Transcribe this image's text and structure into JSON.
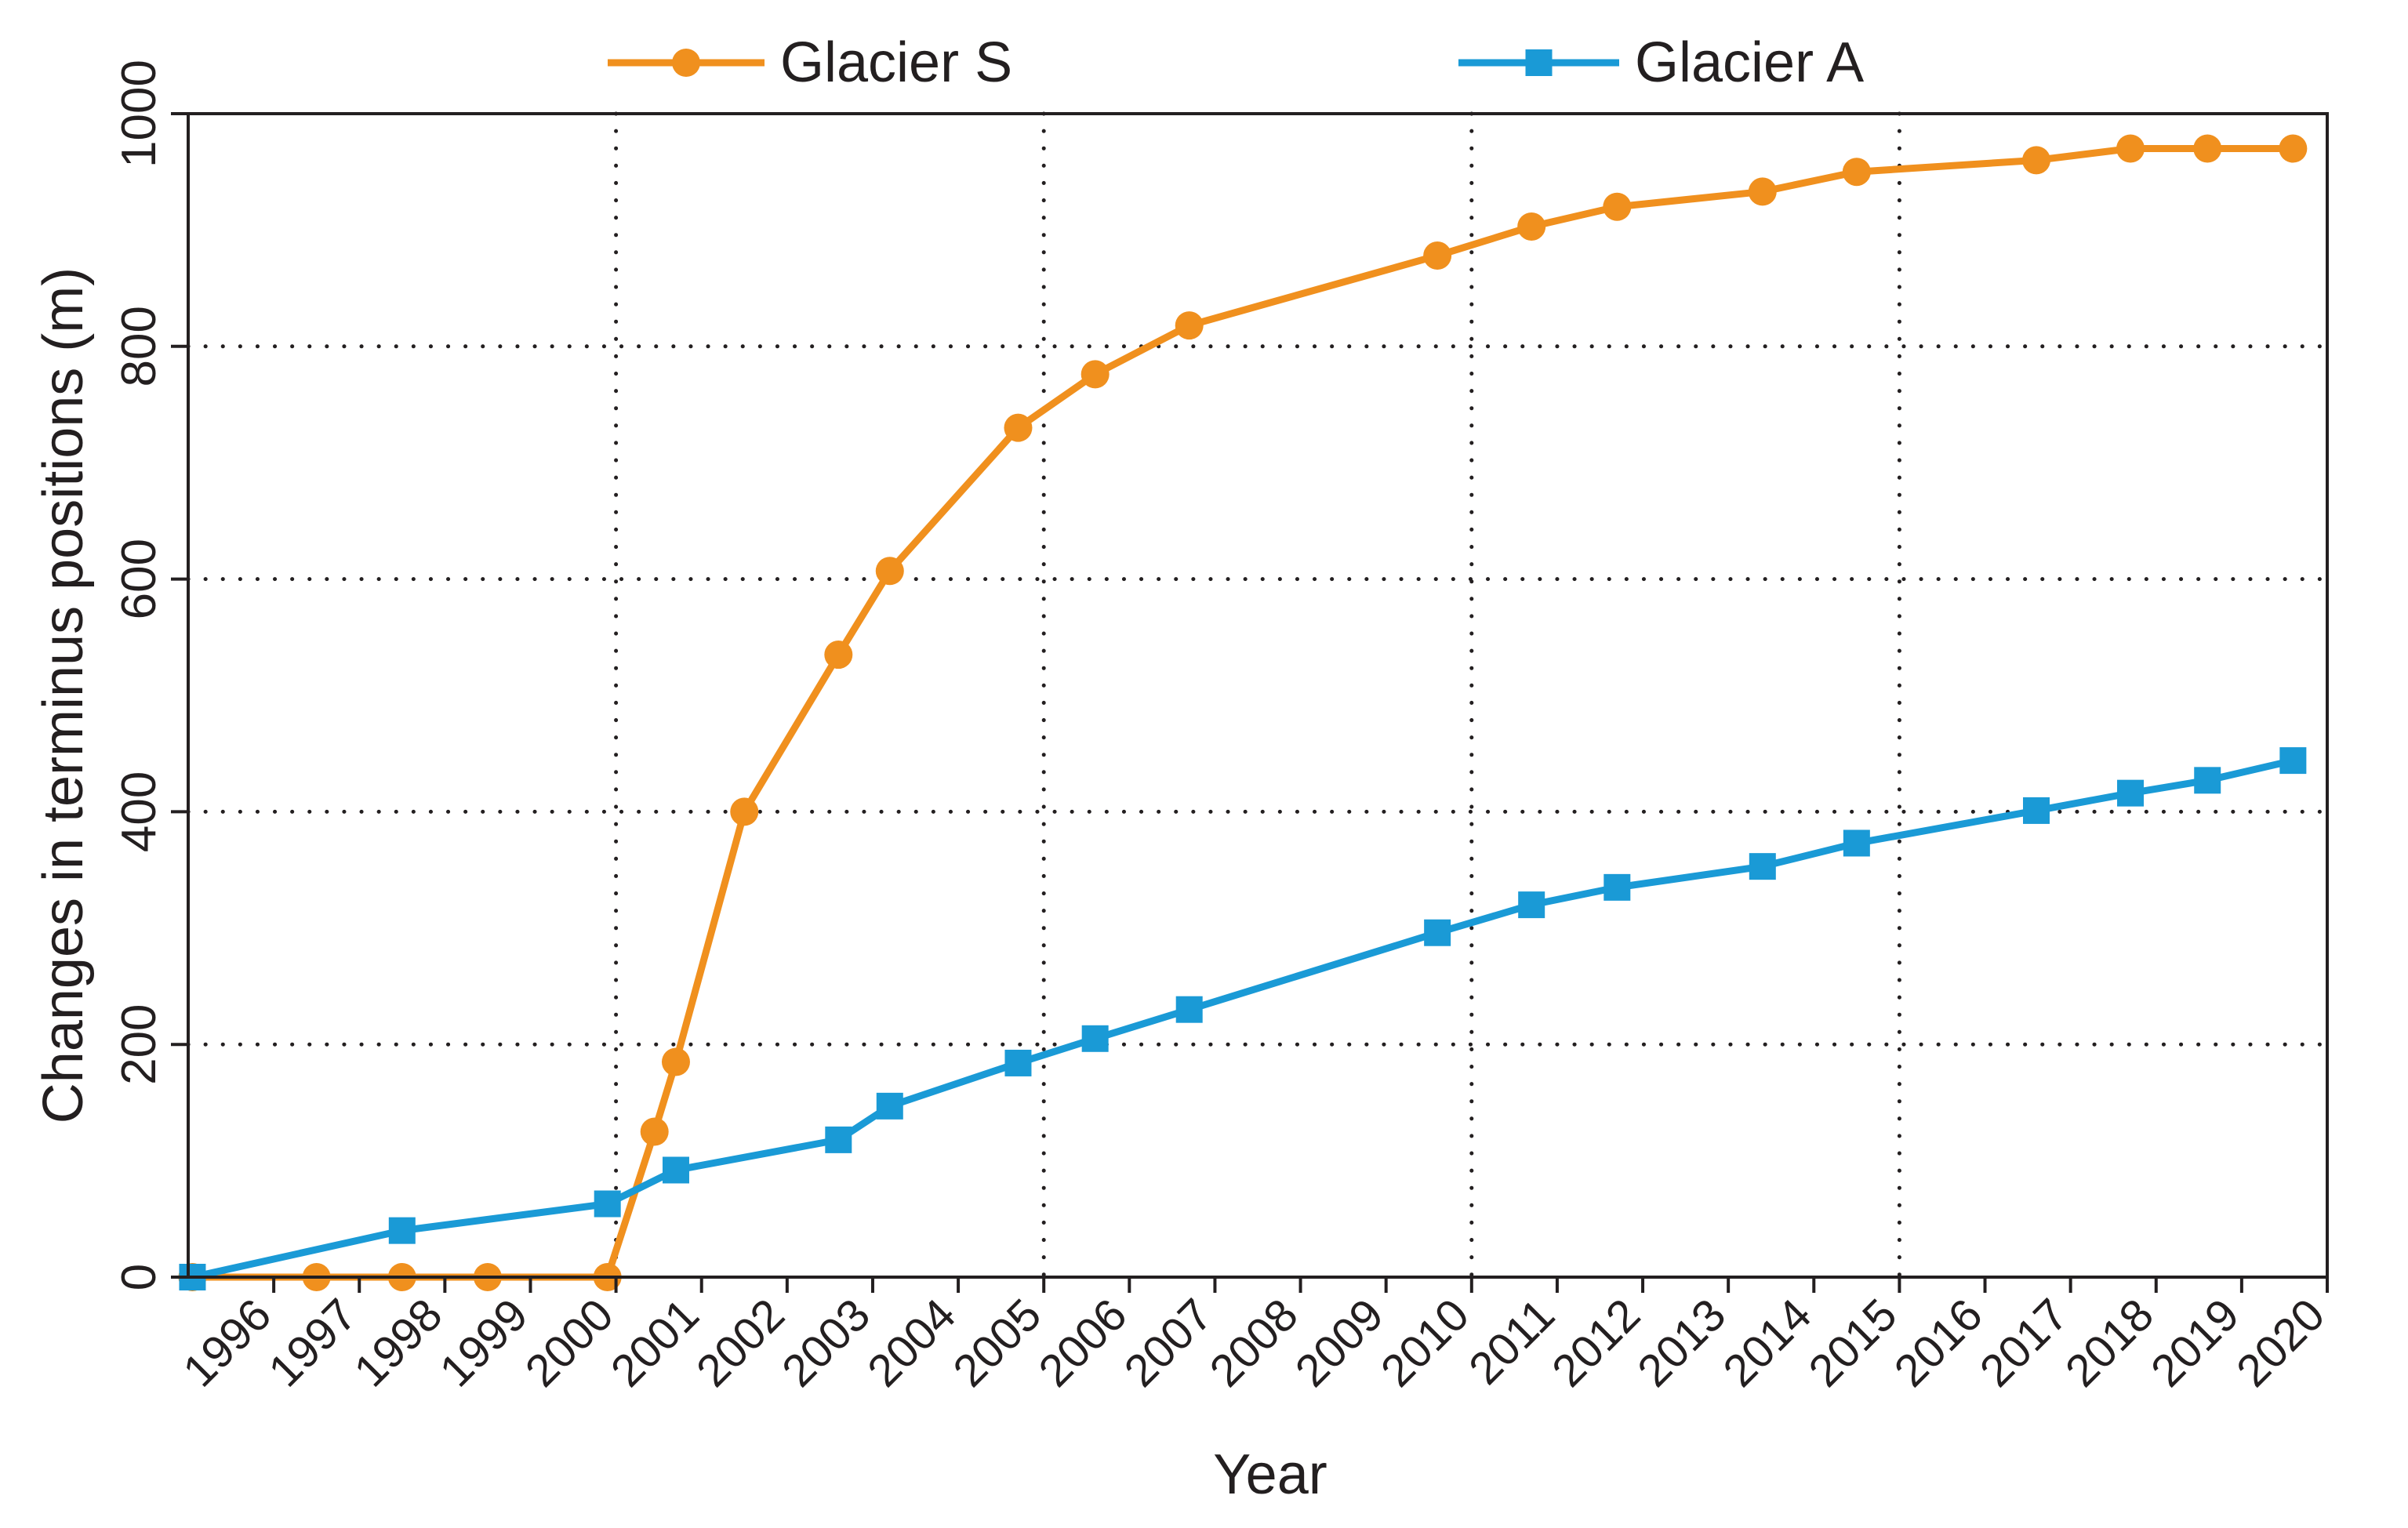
{
  "chart_data": {
    "type": "line",
    "xlabel": "Year",
    "ylabel": "Changes in terminus positions (m)",
    "xlim": [
      1995,
      2020
    ],
    "ylim": [
      0,
      1000
    ],
    "x_ticks": [
      1996,
      1997,
      1998,
      1999,
      2000,
      2001,
      2002,
      2003,
      2004,
      2005,
      2006,
      2007,
      2008,
      2009,
      2010,
      2011,
      2012,
      2013,
      2014,
      2015,
      2016,
      2017,
      2018,
      2019,
      2020
    ],
    "x_tick_labels": [
      "1996",
      "1997",
      "1998",
      "1999",
      "2000",
      "2001",
      "2002",
      "2003",
      "2004",
      "2005",
      "2006",
      "2007",
      "2008",
      "2009",
      "2010",
      "2011",
      "2012",
      "2013",
      "2014",
      "2015",
      "2016",
      "2017",
      "2018",
      "2019",
      "2020"
    ],
    "y_ticks": [
      0,
      200,
      400,
      600,
      800,
      1000
    ],
    "y_tick_labels": [
      "0",
      "200",
      "400",
      "600",
      "800",
      "1000"
    ],
    "grid": {
      "x": [
        2000,
        2005,
        2010,
        2015
      ],
      "y": [
        200,
        400,
        600,
        800
      ],
      "style": "dotted"
    },
    "legend": {
      "position": "top"
    },
    "series": [
      {
        "name": "Glacier S",
        "color": "#f0901e",
        "marker": "circle",
        "x": [
          1995.05,
          1996.5,
          1997.5,
          1998.5,
          1999.9,
          2000.45,
          2000.7,
          2001.5,
          2002.6,
          2003.2,
          2004.7,
          2005.6,
          2006.7,
          2009.6,
          2010.7,
          2011.7,
          2013.4,
          2014.5,
          2016.6,
          2017.7,
          2018.6,
          2019.6
        ],
        "y": [
          0,
          0,
          0,
          0,
          0,
          125,
          185,
          400,
          535,
          607,
          730,
          776,
          818,
          878,
          903,
          920,
          933,
          950,
          960,
          970,
          970,
          970
        ]
      },
      {
        "name": "Glacier A",
        "color": "#1a9ad6",
        "marker": "square",
        "x": [
          1995.05,
          1997.5,
          1999.9,
          2000.7,
          2002.6,
          2003.2,
          2004.7,
          2005.6,
          2006.7,
          2009.6,
          2010.7,
          2011.7,
          2013.4,
          2014.5,
          2016.6,
          2017.7,
          2018.6,
          2019.6
        ],
        "y": [
          0,
          40,
          63,
          92,
          118,
          147,
          184,
          205,
          230,
          296,
          320,
          335,
          353,
          373,
          401,
          416,
          427,
          444
        ]
      }
    ]
  }
}
